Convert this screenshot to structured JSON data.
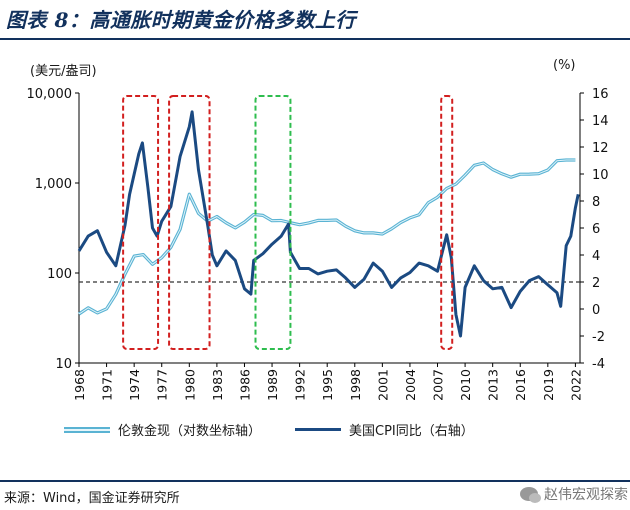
{
  "header": {
    "title": "图表 8：高通胀时期黄金价格多数上行"
  },
  "footer": {
    "source": "来源：Wind，国金证券研究所",
    "watermark": "赵伟宏观探索"
  },
  "chart_data": {
    "type": "line",
    "left_axis": {
      "unit_label": "(美元/盎司)",
      "scale": "log",
      "range": [
        10,
        10000
      ],
      "ticks": [
        "10",
        "100",
        "1,000",
        "10,000"
      ]
    },
    "right_axis": {
      "unit_label": "(%)",
      "range": [
        -4,
        16
      ],
      "ticks": [
        "-4",
        "-2",
        "0",
        "2",
        "4",
        "6",
        "8",
        "10",
        "12",
        "14",
        "16"
      ]
    },
    "x_axis": {
      "range": [
        1968,
        2022.5
      ],
      "ticks": [
        "1968",
        "1971",
        "1974",
        "1977",
        "1980",
        "1983",
        "1986",
        "1989",
        "1992",
        "1995",
        "1998",
        "2001",
        "2004",
        "2007",
        "2010",
        "2013",
        "2016",
        "2019",
        "2022"
      ]
    },
    "legend": {
      "placement": "bottom",
      "gold": "伦敦金现（对数坐标轴）",
      "cpi": "美国CPI同比（右轴）"
    },
    "colors": {
      "gold": "#5ab3d3",
      "cpi": "#1b4a82",
      "red_box": "#d21f1f",
      "green_box": "#2ebd4e",
      "dashed_line": "#333333"
    },
    "reference_line_cpi": 2.0,
    "highlight_periods": [
      {
        "start": 1972.8,
        "end": 1976.6,
        "color": "red"
      },
      {
        "start": 1977.8,
        "end": 1982.2,
        "color": "red"
      },
      {
        "start": 1987.2,
        "end": 1991.0,
        "color": "green"
      },
      {
        "start": 2007.4,
        "end": 2008.6,
        "color": "red"
      }
    ],
    "series": [
      {
        "name": "伦敦金现（对数坐标轴）",
        "axis": "left",
        "points": [
          [
            1968,
            35
          ],
          [
            1969,
            41
          ],
          [
            1970,
            36
          ],
          [
            1971,
            40
          ],
          [
            1972,
            58
          ],
          [
            1973,
            97
          ],
          [
            1974,
            154
          ],
          [
            1975,
            160
          ],
          [
            1976,
            125
          ],
          [
            1977,
            148
          ],
          [
            1978,
            193
          ],
          [
            1979,
            306
          ],
          [
            1980,
            750
          ],
          [
            1981,
            460
          ],
          [
            1982,
            376
          ],
          [
            1983,
            424
          ],
          [
            1984,
            361
          ],
          [
            1985,
            317
          ],
          [
            1986,
            368
          ],
          [
            1987,
            447
          ],
          [
            1988,
            437
          ],
          [
            1989,
            381
          ],
          [
            1990,
            383
          ],
          [
            1991,
            362
          ],
          [
            1992,
            344
          ],
          [
            1993,
            360
          ],
          [
            1994,
            384
          ],
          [
            1995,
            384
          ],
          [
            1996,
            388
          ],
          [
            1997,
            331
          ],
          [
            1998,
            294
          ],
          [
            1999,
            279
          ],
          [
            2000,
            279
          ],
          [
            2001,
            271
          ],
          [
            2002,
            310
          ],
          [
            2003,
            363
          ],
          [
            2004,
            409
          ],
          [
            2005,
            444
          ],
          [
            2006,
            604
          ],
          [
            2007,
            695
          ],
          [
            2008,
            872
          ],
          [
            2009,
            972
          ],
          [
            2010,
            1225
          ],
          [
            2011,
            1572
          ],
          [
            2012,
            1669
          ],
          [
            2013,
            1411
          ],
          [
            2014,
            1266
          ],
          [
            2015,
            1160
          ],
          [
            2016,
            1251
          ],
          [
            2017,
            1257
          ],
          [
            2018,
            1268
          ],
          [
            2019,
            1393
          ],
          [
            2020,
            1770
          ],
          [
            2021,
            1799
          ],
          [
            2022,
            1800
          ]
        ]
      },
      {
        "name": "美国CPI同比（右轴）",
        "axis": "right",
        "points": [
          [
            1968,
            4.3
          ],
          [
            1969,
            5.4
          ],
          [
            1970,
            5.8
          ],
          [
            1971,
            4.2
          ],
          [
            1972,
            3.2
          ],
          [
            1973,
            6.2
          ],
          [
            1973.5,
            8.5
          ],
          [
            1974,
            10.0
          ],
          [
            1974.5,
            11.5
          ],
          [
            1974.9,
            12.3
          ],
          [
            1975.5,
            9.0
          ],
          [
            1976,
            6.0
          ],
          [
            1976.5,
            5.4
          ],
          [
            1977,
            6.5
          ],
          [
            1978,
            7.6
          ],
          [
            1979,
            11.3
          ],
          [
            1980,
            13.5
          ],
          [
            1980.3,
            14.6
          ],
          [
            1981,
            10.3
          ],
          [
            1982,
            6.2
          ],
          [
            1982.5,
            4.0
          ],
          [
            1983,
            3.2
          ],
          [
            1984,
            4.3
          ],
          [
            1985,
            3.6
          ],
          [
            1986,
            1.5
          ],
          [
            1986.7,
            1.1
          ],
          [
            1987,
            3.6
          ],
          [
            1988,
            4.1
          ],
          [
            1989,
            4.8
          ],
          [
            1990,
            5.4
          ],
          [
            1990.8,
            6.3
          ],
          [
            1991,
            4.2
          ],
          [
            1992,
            3.0
          ],
          [
            1993,
            3.0
          ],
          [
            1994,
            2.6
          ],
          [
            1995,
            2.8
          ],
          [
            1996,
            2.9
          ],
          [
            1997,
            2.3
          ],
          [
            1998,
            1.6
          ],
          [
            1999,
            2.2
          ],
          [
            2000,
            3.4
          ],
          [
            2001,
            2.8
          ],
          [
            2002,
            1.6
          ],
          [
            2003,
            2.3
          ],
          [
            2004,
            2.7
          ],
          [
            2005,
            3.4
          ],
          [
            2006,
            3.2
          ],
          [
            2007,
            2.8
          ],
          [
            2008,
            5.5
          ],
          [
            2008.5,
            3.8
          ],
          [
            2009,
            -0.4
          ],
          [
            2009.5,
            -2.0
          ],
          [
            2010,
            1.6
          ],
          [
            2011,
            3.2
          ],
          [
            2012,
            2.1
          ],
          [
            2013,
            1.5
          ],
          [
            2014,
            1.6
          ],
          [
            2015,
            0.1
          ],
          [
            2016,
            1.3
          ],
          [
            2017,
            2.1
          ],
          [
            2018,
            2.4
          ],
          [
            2019,
            1.8
          ],
          [
            2020,
            1.2
          ],
          [
            2020.4,
            0.2
          ],
          [
            2021,
            4.7
          ],
          [
            2021.5,
            5.4
          ],
          [
            2022,
            7.5
          ],
          [
            2022.3,
            8.5
          ]
        ]
      }
    ]
  }
}
